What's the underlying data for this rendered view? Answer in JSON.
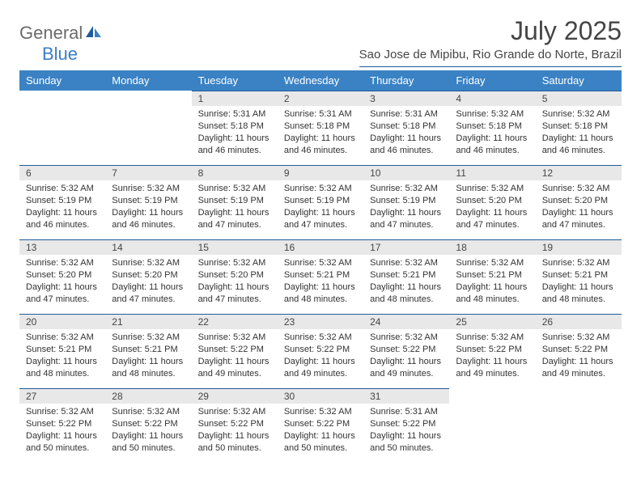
{
  "brand": {
    "name_part1": "General",
    "name_part2": "Blue",
    "color_gray": "#6b6b6b",
    "color_blue": "#3a7fc4"
  },
  "header": {
    "month_title": "July 2025",
    "location": "Sao Jose de Mipibu, Rio Grande do Norte, Brazil"
  },
  "colors": {
    "header_bg": "#3a82c4",
    "header_text": "#ffffff",
    "daynum_bg": "#e8e8e8",
    "daynum_border": "#1f5c99",
    "text": "#333333"
  },
  "day_labels": [
    "Sunday",
    "Monday",
    "Tuesday",
    "Wednesday",
    "Thursday",
    "Friday",
    "Saturday"
  ],
  "weeks": [
    [
      null,
      null,
      {
        "n": "1",
        "sunrise": "5:31 AM",
        "sunset": "5:18 PM",
        "daylight": "11 hours and 46 minutes."
      },
      {
        "n": "2",
        "sunrise": "5:31 AM",
        "sunset": "5:18 PM",
        "daylight": "11 hours and 46 minutes."
      },
      {
        "n": "3",
        "sunrise": "5:31 AM",
        "sunset": "5:18 PM",
        "daylight": "11 hours and 46 minutes."
      },
      {
        "n": "4",
        "sunrise": "5:32 AM",
        "sunset": "5:18 PM",
        "daylight": "11 hours and 46 minutes."
      },
      {
        "n": "5",
        "sunrise": "5:32 AM",
        "sunset": "5:18 PM",
        "daylight": "11 hours and 46 minutes."
      }
    ],
    [
      {
        "n": "6",
        "sunrise": "5:32 AM",
        "sunset": "5:19 PM",
        "daylight": "11 hours and 46 minutes."
      },
      {
        "n": "7",
        "sunrise": "5:32 AM",
        "sunset": "5:19 PM",
        "daylight": "11 hours and 46 minutes."
      },
      {
        "n": "8",
        "sunrise": "5:32 AM",
        "sunset": "5:19 PM",
        "daylight": "11 hours and 47 minutes."
      },
      {
        "n": "9",
        "sunrise": "5:32 AM",
        "sunset": "5:19 PM",
        "daylight": "11 hours and 47 minutes."
      },
      {
        "n": "10",
        "sunrise": "5:32 AM",
        "sunset": "5:19 PM",
        "daylight": "11 hours and 47 minutes."
      },
      {
        "n": "11",
        "sunrise": "5:32 AM",
        "sunset": "5:20 PM",
        "daylight": "11 hours and 47 minutes."
      },
      {
        "n": "12",
        "sunrise": "5:32 AM",
        "sunset": "5:20 PM",
        "daylight": "11 hours and 47 minutes."
      }
    ],
    [
      {
        "n": "13",
        "sunrise": "5:32 AM",
        "sunset": "5:20 PM",
        "daylight": "11 hours and 47 minutes."
      },
      {
        "n": "14",
        "sunrise": "5:32 AM",
        "sunset": "5:20 PM",
        "daylight": "11 hours and 47 minutes."
      },
      {
        "n": "15",
        "sunrise": "5:32 AM",
        "sunset": "5:20 PM",
        "daylight": "11 hours and 47 minutes."
      },
      {
        "n": "16",
        "sunrise": "5:32 AM",
        "sunset": "5:21 PM",
        "daylight": "11 hours and 48 minutes."
      },
      {
        "n": "17",
        "sunrise": "5:32 AM",
        "sunset": "5:21 PM",
        "daylight": "11 hours and 48 minutes."
      },
      {
        "n": "18",
        "sunrise": "5:32 AM",
        "sunset": "5:21 PM",
        "daylight": "11 hours and 48 minutes."
      },
      {
        "n": "19",
        "sunrise": "5:32 AM",
        "sunset": "5:21 PM",
        "daylight": "11 hours and 48 minutes."
      }
    ],
    [
      {
        "n": "20",
        "sunrise": "5:32 AM",
        "sunset": "5:21 PM",
        "daylight": "11 hours and 48 minutes."
      },
      {
        "n": "21",
        "sunrise": "5:32 AM",
        "sunset": "5:21 PM",
        "daylight": "11 hours and 48 minutes."
      },
      {
        "n": "22",
        "sunrise": "5:32 AM",
        "sunset": "5:22 PM",
        "daylight": "11 hours and 49 minutes."
      },
      {
        "n": "23",
        "sunrise": "5:32 AM",
        "sunset": "5:22 PM",
        "daylight": "11 hours and 49 minutes."
      },
      {
        "n": "24",
        "sunrise": "5:32 AM",
        "sunset": "5:22 PM",
        "daylight": "11 hours and 49 minutes."
      },
      {
        "n": "25",
        "sunrise": "5:32 AM",
        "sunset": "5:22 PM",
        "daylight": "11 hours and 49 minutes."
      },
      {
        "n": "26",
        "sunrise": "5:32 AM",
        "sunset": "5:22 PM",
        "daylight": "11 hours and 49 minutes."
      }
    ],
    [
      {
        "n": "27",
        "sunrise": "5:32 AM",
        "sunset": "5:22 PM",
        "daylight": "11 hours and 50 minutes."
      },
      {
        "n": "28",
        "sunrise": "5:32 AM",
        "sunset": "5:22 PM",
        "daylight": "11 hours and 50 minutes."
      },
      {
        "n": "29",
        "sunrise": "5:32 AM",
        "sunset": "5:22 PM",
        "daylight": "11 hours and 50 minutes."
      },
      {
        "n": "30",
        "sunrise": "5:32 AM",
        "sunset": "5:22 PM",
        "daylight": "11 hours and 50 minutes."
      },
      {
        "n": "31",
        "sunrise": "5:31 AM",
        "sunset": "5:22 PM",
        "daylight": "11 hours and 50 minutes."
      },
      null,
      null
    ]
  ],
  "field_labels": {
    "sunrise": "Sunrise:",
    "sunset": "Sunset:",
    "daylight": "Daylight:"
  }
}
